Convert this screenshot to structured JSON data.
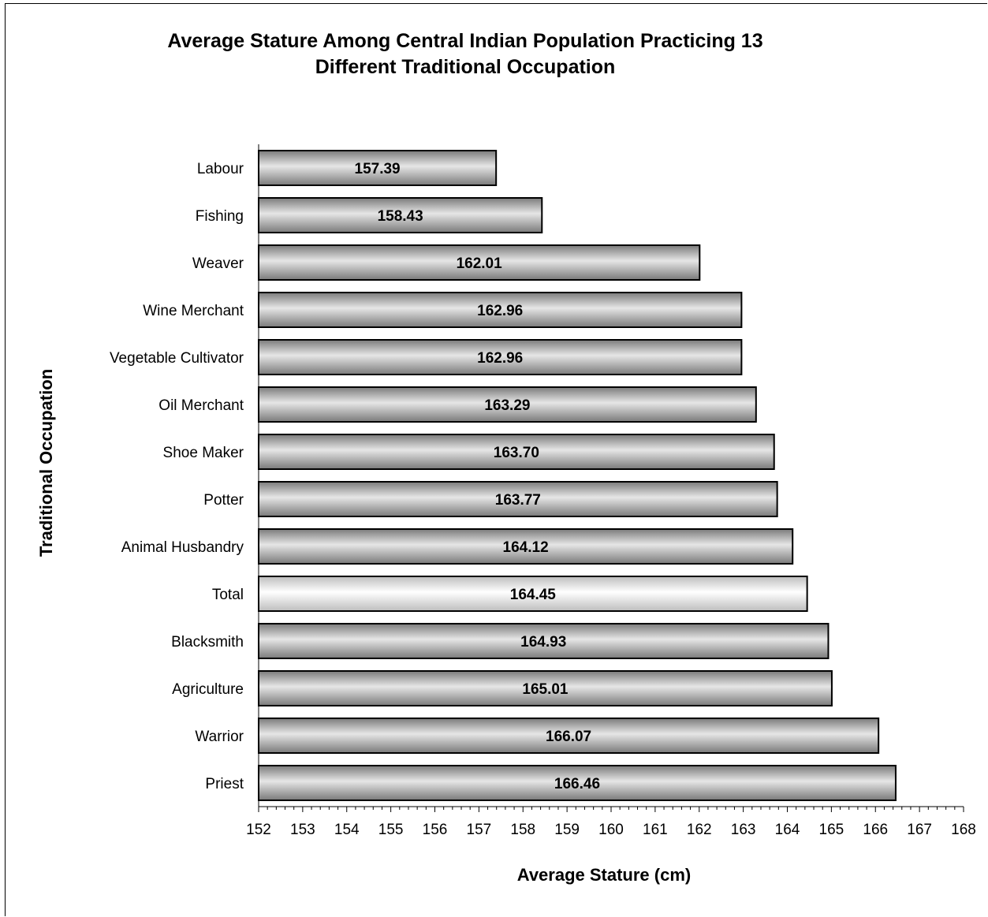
{
  "chart_data": {
    "type": "bar",
    "orientation": "horizontal",
    "title_line1": "Average Stature Among Central Indian Population Practicing 13",
    "title_line2": "Different Traditional Occupation",
    "xlabel": "Average Stature (cm)",
    "ylabel": "Traditional Occupation",
    "xlim": [
      152,
      168
    ],
    "xticks": [
      "152",
      "153",
      "154",
      "155",
      "156",
      "157",
      "158",
      "159",
      "160",
      "161",
      "162",
      "163",
      "164",
      "165",
      "166",
      "167",
      "168"
    ],
    "categories": [
      "Labour",
      "Fishing",
      "Weaver",
      "Wine Merchant",
      "Vegetable Cultivator",
      "Oil Merchant",
      "Shoe Maker",
      "Potter",
      "Animal Husbandry",
      "Total",
      "Blacksmith",
      "Agriculture",
      "Warrior",
      "Priest"
    ],
    "values": [
      157.39,
      158.43,
      162.01,
      162.96,
      162.96,
      163.29,
      163.7,
      163.77,
      164.12,
      164.45,
      164.93,
      165.01,
      166.07,
      166.46
    ],
    "data_labels": [
      "157.39",
      "158.43",
      "162.01",
      "162.96",
      "162.96",
      "163.29",
      "163.70",
      "163.77",
      "164.12",
      "164.45",
      "164.93",
      "165.01",
      "166.07",
      "166.46"
    ],
    "highlight_category": "Total",
    "grid": false,
    "legend": "none",
    "colors": {
      "bar_edge": "#000000",
      "bar_dark": "#7a7a7a",
      "bar_light": "#e6e6e6",
      "highlight_dark": "#bdbdbd",
      "highlight_light": "#ffffff"
    }
  }
}
